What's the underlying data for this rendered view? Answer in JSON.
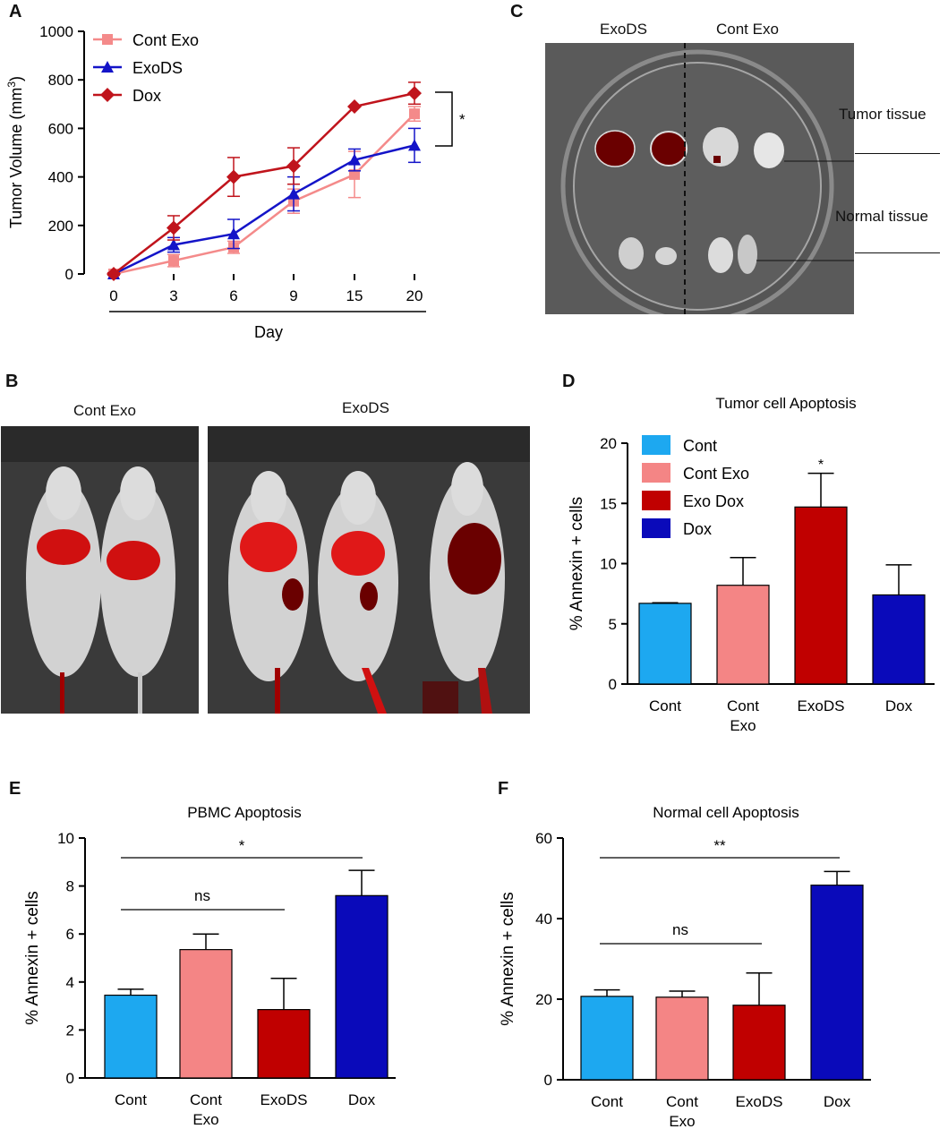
{
  "panels": {
    "A": "A",
    "B": "B",
    "C": "C",
    "D": "D",
    "E": "E",
    "F": "F"
  },
  "colors": {
    "cont": "#1da8f0",
    "cont_exo": "#f48585",
    "exo_dox": "#c00000",
    "dox": "#0a0aba",
    "line_cont_exo": "#f48a8a",
    "line_exods": "#1414c8",
    "line_dox": "#c0141c"
  },
  "chart_data": [
    {
      "id": "A",
      "type": "line",
      "title": "",
      "xlabel": "Day",
      "ylabel": "Tumor Volume (mm",
      "ylabel_sup": "3",
      "ylabel_close": ")",
      "x": [
        "0",
        "3",
        "6",
        "9",
        "15",
        "20"
      ],
      "ylim": [
        0,
        1000
      ],
      "yticks": [
        0,
        200,
        400,
        600,
        800,
        1000
      ],
      "series": [
        {
          "name": "Cont Exo",
          "marker": "square",
          "values": [
            0,
            55,
            110,
            300,
            410,
            660
          ],
          "errors": [
            5,
            25,
            25,
            50,
            95,
            30
          ]
        },
        {
          "name": "ExoDS",
          "marker": "triangle",
          "values": [
            0,
            120,
            165,
            330,
            470,
            530
          ],
          "errors": [
            5,
            30,
            60,
            70,
            45,
            70
          ]
        },
        {
          "name": "Dox",
          "marker": "diamond",
          "values": [
            0,
            190,
            400,
            445,
            690,
            745
          ],
          "errors": [
            5,
            50,
            80,
            75,
            0,
            45
          ]
        }
      ],
      "annotation": "*"
    },
    {
      "id": "D",
      "type": "bar",
      "title": "Tumor cell Apoptosis",
      "ylabel": "% Annexin + cells",
      "categories": [
        "Cont",
        "Cont Exo",
        "ExoDS",
        "Dox"
      ],
      "values": [
        6.7,
        8.2,
        14.7,
        7.4
      ],
      "errors": [
        0.05,
        2.3,
        2.8,
        2.5
      ],
      "ylim": [
        0,
        20
      ],
      "yticks": [
        0,
        5,
        10,
        15,
        20
      ],
      "legend": [
        "Cont",
        "Cont Exo",
        "Exo Dox",
        "Dox"
      ],
      "annotation": "*"
    },
    {
      "id": "E",
      "type": "bar",
      "title": "PBMC Apoptosis",
      "ylabel": "% Annexin + cells",
      "categories": [
        "Cont",
        "Cont Exo",
        "ExoDS",
        "Dox"
      ],
      "values": [
        3.45,
        5.35,
        2.85,
        7.6
      ],
      "errors": [
        0.25,
        0.65,
        1.3,
        1.05
      ],
      "ylim": [
        0,
        10
      ],
      "yticks": [
        0,
        2,
        4,
        6,
        8,
        10
      ],
      "brackets": [
        "*",
        "ns"
      ]
    },
    {
      "id": "F",
      "type": "bar",
      "title": "Normal cell Apoptosis",
      "ylabel": "% Annexin + cells",
      "categories": [
        "Cont",
        "Cont Exo",
        "ExoDS",
        "Dox"
      ],
      "values": [
        20.7,
        20.5,
        18.5,
        48.3
      ],
      "errors": [
        1.6,
        1.5,
        8.0,
        3.4
      ],
      "ylim": [
        0,
        60
      ],
      "yticks": [
        0,
        20,
        40,
        60
      ],
      "brackets": [
        "**",
        "ns"
      ]
    }
  ],
  "panel_b": {
    "left_label": "Cont Exo",
    "right_label": "ExoDS"
  },
  "panel_c": {
    "left_label": "ExoDS",
    "right_label": "Cont Exo",
    "tumor_label": "Tumor tissue",
    "normal_label": "Normal tissue"
  }
}
